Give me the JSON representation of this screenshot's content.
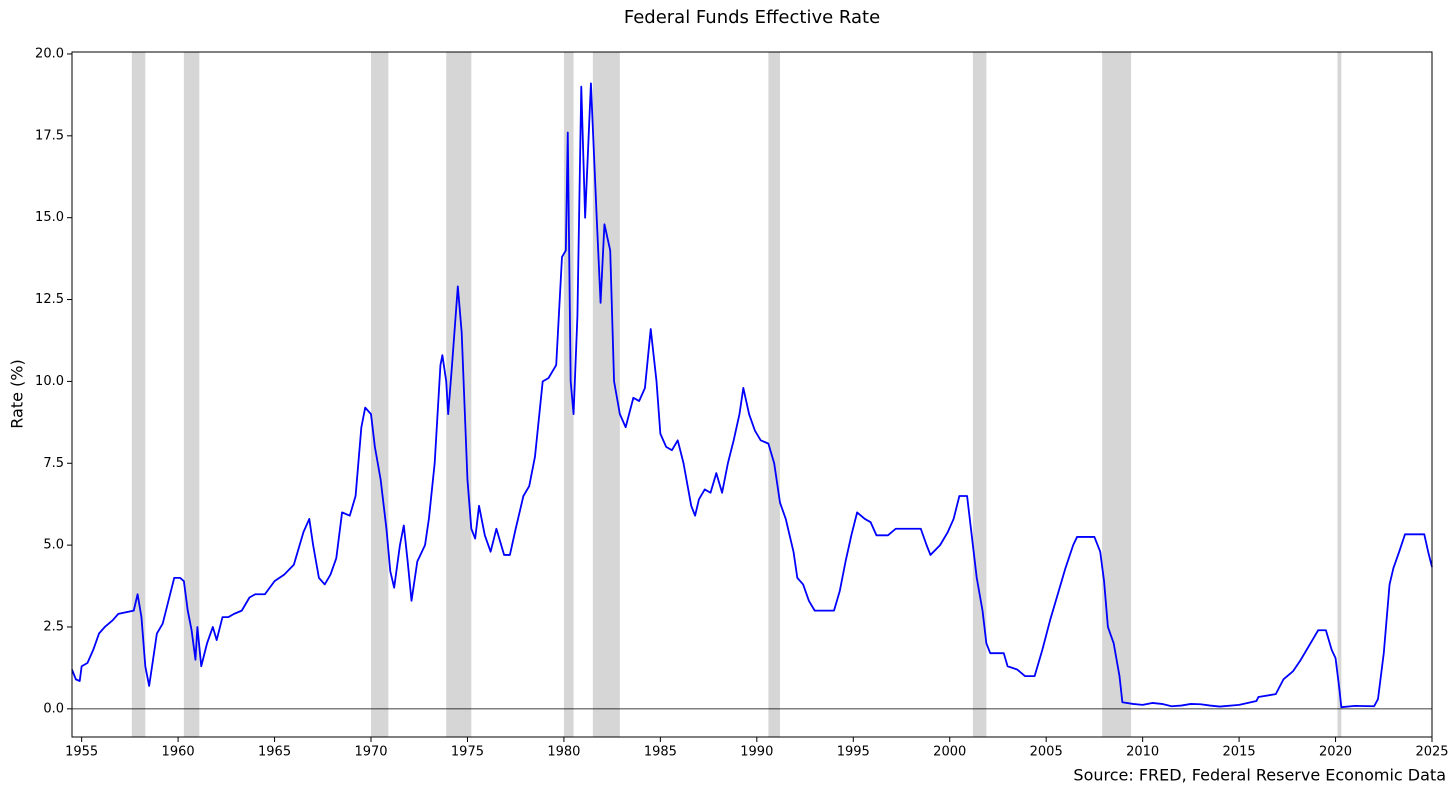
{
  "chart_data": {
    "type": "line",
    "title": "Federal Funds Effective Rate",
    "ylabel": "Rate (%)",
    "source": "Source: FRED, Federal Reserve Economic Data",
    "xlim": [
      1954.5,
      2025
    ],
    "ylim": [
      -0.86,
      20.06
    ],
    "xticks": [
      1955,
      1960,
      1965,
      1970,
      1975,
      1980,
      1985,
      1990,
      1995,
      2000,
      2005,
      2010,
      2015,
      2020,
      2025
    ],
    "yticks": [
      {
        "value": 0,
        "label": "0.0"
      },
      2.5,
      {
        "value": 5,
        "label": "5.0"
      },
      7.5,
      {
        "value": 10,
        "label": "10.0"
      },
      12.5,
      {
        "value": 15,
        "label": "15.0"
      },
      17.5,
      {
        "value": 20,
        "label": "20.0"
      }
    ],
    "hline": 0,
    "recession_color": "#d6d6d6",
    "recessions": [
      [
        1957.6,
        1958.3
      ],
      [
        1960.3,
        1961.1
      ],
      [
        1970.0,
        1970.9
      ],
      [
        1973.9,
        1975.2
      ],
      [
        1980.0,
        1980.5
      ],
      [
        1981.5,
        1982.9
      ],
      [
        1990.6,
        1991.2
      ],
      [
        2001.2,
        2001.9
      ],
      [
        2007.9,
        2009.4
      ],
      [
        2020.1,
        2020.3
      ]
    ],
    "series": [
      {
        "name": "Federal Funds Effective Rate",
        "color": "#0000ff",
        "x": [
          1954.5,
          1954.7,
          1954.9,
          1955.0,
          1955.3,
          1955.6,
          1955.9,
          1956.2,
          1956.6,
          1956.9,
          1957.3,
          1957.7,
          1957.9,
          1958.1,
          1958.3,
          1958.5,
          1958.7,
          1958.9,
          1959.2,
          1959.5,
          1959.8,
          1960.1,
          1960.3,
          1960.5,
          1960.7,
          1960.9,
          1961.0,
          1961.2,
          1961.5,
          1961.8,
          1962.0,
          1962.3,
          1962.6,
          1962.9,
          1963.3,
          1963.7,
          1964.0,
          1964.5,
          1965.0,
          1965.5,
          1966.0,
          1966.5,
          1966.8,
          1967.0,
          1967.3,
          1967.6,
          1967.9,
          1968.2,
          1968.5,
          1968.9,
          1969.2,
          1969.5,
          1969.7,
          1970.0,
          1970.2,
          1970.5,
          1970.8,
          1971.0,
          1971.2,
          1971.5,
          1971.7,
          1971.9,
          1972.1,
          1972.4,
          1972.8,
          1973.0,
          1973.3,
          1973.6,
          1973.7,
          1973.9,
          1974.0,
          1974.2,
          1974.5,
          1974.7,
          1975.0,
          1975.2,
          1975.4,
          1975.6,
          1975.9,
          1976.2,
          1976.5,
          1976.9,
          1977.2,
          1977.5,
          1977.9,
          1978.2,
          1978.5,
          1978.9,
          1979.2,
          1979.6,
          1979.9,
          1980.1,
          1980.2,
          1980.35,
          1980.5,
          1980.7,
          1980.9,
          1981.1,
          1981.4,
          1981.7,
          1981.9,
          1982.1,
          1982.4,
          1982.6,
          1982.9,
          1983.2,
          1983.6,
          1983.9,
          1984.2,
          1984.5,
          1984.8,
          1985.0,
          1985.3,
          1985.6,
          1985.9,
          1986.2,
          1986.6,
          1986.8,
          1987.0,
          1987.3,
          1987.6,
          1987.9,
          1988.2,
          1988.5,
          1988.8,
          1989.1,
          1989.3,
          1989.6,
          1989.9,
          1990.2,
          1990.6,
          1990.9,
          1991.2,
          1991.5,
          1991.9,
          1992.1,
          1992.4,
          1992.7,
          1993.0,
          1993.5,
          1994.0,
          1994.3,
          1994.6,
          1994.9,
          1995.2,
          1995.6,
          1995.9,
          1996.2,
          1996.8,
          1997.2,
          1998.0,
          1998.5,
          1998.8,
          1999.0,
          1999.5,
          1999.9,
          2000.2,
          2000.5,
          2000.9,
          2001.1,
          2001.4,
          2001.7,
          2001.9,
          2002.1,
          2002.8,
          2003.0,
          2003.5,
          2003.9,
          2004.4,
          2004.8,
          2005.2,
          2005.6,
          2006.0,
          2006.4,
          2006.6,
          2007.5,
          2007.8,
          2008.0,
          2008.2,
          2008.5,
          2008.8,
          2008.95,
          2009.5,
          2010.0,
          2010.5,
          2011.0,
          2011.5,
          2012.0,
          2012.5,
          2013.0,
          2013.5,
          2014.0,
          2015.0,
          2015.9,
          2016.0,
          2016.9,
          2017.3,
          2017.8,
          2018.2,
          2018.6,
          2018.9,
          2019.1,
          2019.5,
          2019.8,
          2020.0,
          2020.2,
          2020.3,
          2021.0,
          2022.0,
          2022.2,
          2022.5,
          2022.8,
          2023.0,
          2023.3,
          2023.6,
          2024.6,
          2024.8,
          2025.0
        ],
        "values": [
          1.2,
          0.9,
          0.85,
          1.3,
          1.4,
          1.8,
          2.3,
          2.5,
          2.7,
          2.9,
          2.95,
          3.0,
          3.5,
          2.8,
          1.3,
          0.7,
          1.5,
          2.3,
          2.6,
          3.3,
          4.0,
          4.0,
          3.9,
          3.0,
          2.4,
          1.5,
          2.5,
          1.3,
          2.0,
          2.5,
          2.1,
          2.8,
          2.8,
          2.9,
          3.0,
          3.4,
          3.5,
          3.5,
          3.9,
          4.1,
          4.4,
          5.4,
          5.8,
          5.0,
          4.0,
          3.8,
          4.1,
          4.6,
          6.0,
          5.9,
          6.5,
          8.6,
          9.2,
          9.0,
          8.0,
          7.0,
          5.5,
          4.2,
          3.7,
          5.0,
          5.6,
          4.5,
          3.3,
          4.5,
          5.0,
          5.8,
          7.5,
          10.5,
          10.8,
          10.0,
          9.0,
          10.5,
          12.9,
          11.5,
          7.0,
          5.5,
          5.2,
          6.2,
          5.3,
          4.8,
          5.5,
          4.7,
          4.7,
          5.5,
          6.5,
          6.8,
          7.7,
          10.0,
          10.1,
          10.5,
          13.8,
          14.0,
          17.6,
          10.0,
          9.0,
          12.0,
          19.0,
          15.0,
          19.1,
          15.0,
          12.4,
          14.8,
          14.0,
          10.0,
          9.0,
          8.6,
          9.5,
          9.4,
          9.8,
          11.6,
          10.0,
          8.4,
          8.0,
          7.9,
          8.2,
          7.5,
          6.2,
          5.9,
          6.4,
          6.7,
          6.6,
          7.2,
          6.6,
          7.5,
          8.2,
          9.0,
          9.8,
          9.0,
          8.5,
          8.2,
          8.1,
          7.5,
          6.3,
          5.8,
          4.8,
          4.0,
          3.8,
          3.3,
          3.0,
          3.0,
          3.0,
          3.6,
          4.5,
          5.3,
          6.0,
          5.8,
          5.7,
          5.3,
          5.3,
          5.5,
          5.5,
          5.5,
          5.0,
          4.7,
          5.0,
          5.4,
          5.8,
          6.5,
          6.5,
          5.5,
          4.0,
          3.0,
          2.0,
          1.7,
          1.7,
          1.3,
          1.2,
          1.0,
          1.0,
          1.8,
          2.7,
          3.5,
          4.3,
          5.0,
          5.25,
          5.25,
          4.8,
          3.9,
          2.5,
          2.0,
          1.0,
          0.2,
          0.15,
          0.12,
          0.18,
          0.15,
          0.08,
          0.1,
          0.15,
          0.14,
          0.1,
          0.07,
          0.12,
          0.24,
          0.36,
          0.45,
          0.9,
          1.15,
          1.5,
          1.9,
          2.2,
          2.4,
          2.4,
          1.8,
          1.55,
          0.6,
          0.05,
          0.09,
          0.08,
          0.3,
          1.7,
          3.8,
          4.3,
          4.8,
          5.33,
          5.33,
          4.8,
          4.33
        ]
      }
    ]
  }
}
